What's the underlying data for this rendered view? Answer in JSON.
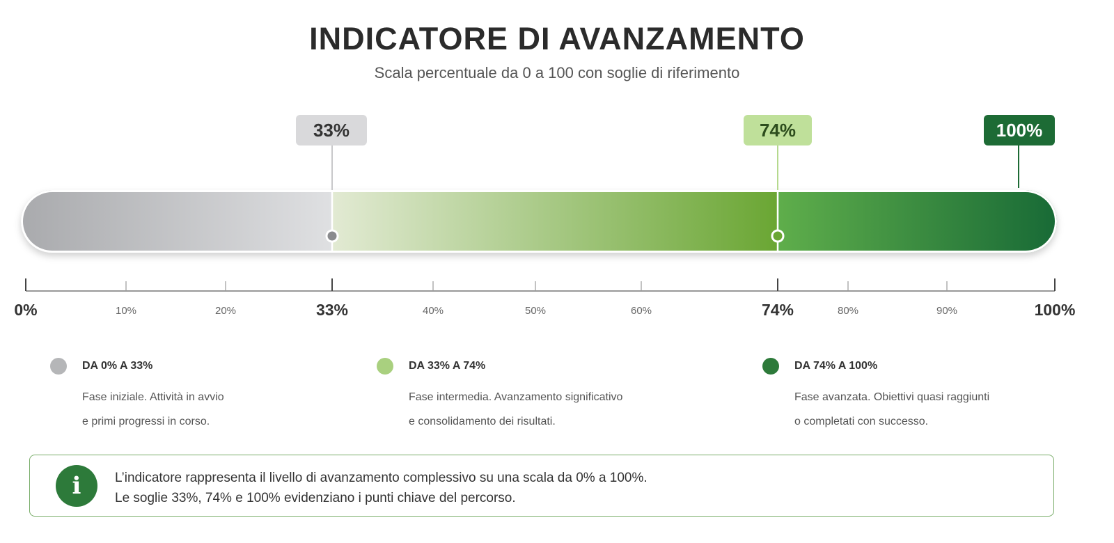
{
  "header": {
    "title": "INDICATORE DI AVANZAMENTO",
    "subtitle": "Scala percentuale da 0 a 100 con soglie di riferimento"
  },
  "chart_data": {
    "type": "bar",
    "orientation": "horizontal",
    "title": "INDICATORE DI AVANZAMENTO",
    "subtitle": "Scala percentuale da 0 a 100 con soglie di riferimento",
    "xlim": [
      0,
      100
    ],
    "value": 100,
    "thresholds": [
      {
        "value": 33,
        "label": "33%",
        "color": "#d9d9db"
      },
      {
        "value": 74,
        "label": "74%",
        "color": "#bfe09a"
      },
      {
        "value": 100,
        "label": "100%",
        "color": "#1d6b35"
      }
    ],
    "segments": [
      {
        "from": 0,
        "to": 33,
        "colors": [
          "#a9aaad",
          "#dfe0e2"
        ]
      },
      {
        "from": 33,
        "to": 74,
        "colors": [
          "#e2ead3",
          "#6aa633"
        ]
      },
      {
        "from": 74,
        "to": 100,
        "colors": [
          "#5fae4b",
          "#186a36"
        ]
      }
    ],
    "ticks": [
      {
        "value": 0,
        "label": "0%",
        "major": true
      },
      {
        "value": 10,
        "label": "10%",
        "major": false
      },
      {
        "value": 20,
        "label": "20%",
        "major": false
      },
      {
        "value": 33,
        "label": "33%",
        "major": true
      },
      {
        "value": 40,
        "label": "40%",
        "major": false
      },
      {
        "value": 50,
        "label": "50%",
        "major": false
      },
      {
        "value": 60,
        "label": "60%",
        "major": false
      },
      {
        "value": 74,
        "label": "74%",
        "major": true
      },
      {
        "value": 80,
        "label": "80%",
        "major": false
      },
      {
        "value": 90,
        "label": "90%",
        "major": false
      },
      {
        "value": 100,
        "label": "100%",
        "major": true
      }
    ],
    "grid": false
  },
  "legend": [
    {
      "title": "DA 0% A 33%",
      "line1": "Fase iniziale. Attività in avvio",
      "line2": "e primi progressi in corso.",
      "color": "#b5b6b8"
    },
    {
      "title": "DA 33% A 74%",
      "line1": "Fase intermedia. Avanzamento significativo",
      "line2": "e consolidamento dei risultati.",
      "color": "#a9d07f"
    },
    {
      "title": "DA 74% A 100%",
      "line1": "Fase avanzata. Obiettivi quasi raggiunti",
      "line2": "o completati con successo.",
      "color": "#2d7a3a"
    }
  ],
  "info": {
    "icon": "info-icon",
    "line1": "L’indicatore rappresenta il livello di avanzamento complessivo su una scala da 0% a 100%.",
    "line2": "Le soglie 33%, 74% e 100% evidenziano i punti chiave del percorso."
  }
}
